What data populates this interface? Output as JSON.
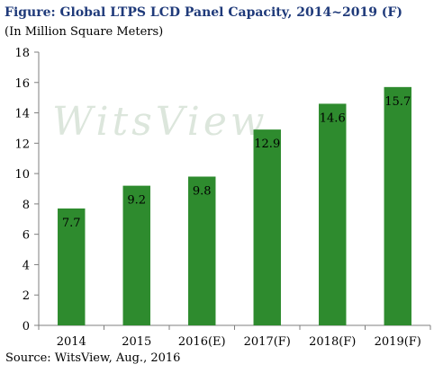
{
  "chart_data": {
    "type": "bar",
    "title": "Figure: Global LTPS LCD Panel Capacity, 2014~2019 (F)",
    "subtitle": "(In Million Square Meters)",
    "categories": [
      "2014",
      "2015",
      "2016(E)",
      "2017(F)",
      "2018(F)",
      "2019(F)"
    ],
    "values": [
      7.7,
      9.2,
      9.8,
      12.9,
      14.6,
      15.7
    ],
    "data_labels": [
      "7.7",
      "9.2",
      "9.8",
      "12.9",
      "14.6",
      "15.7"
    ],
    "ylim": [
      0,
      18
    ],
    "yticks": [
      0,
      2,
      4,
      6,
      8,
      10,
      12,
      14,
      16,
      18
    ],
    "xlabel": "",
    "ylabel": "",
    "grid": false,
    "legend": "none",
    "bar_color": "#2e8b2e",
    "watermark": "WitsView",
    "source": "Source: WitsView, Aug., 2016"
  }
}
